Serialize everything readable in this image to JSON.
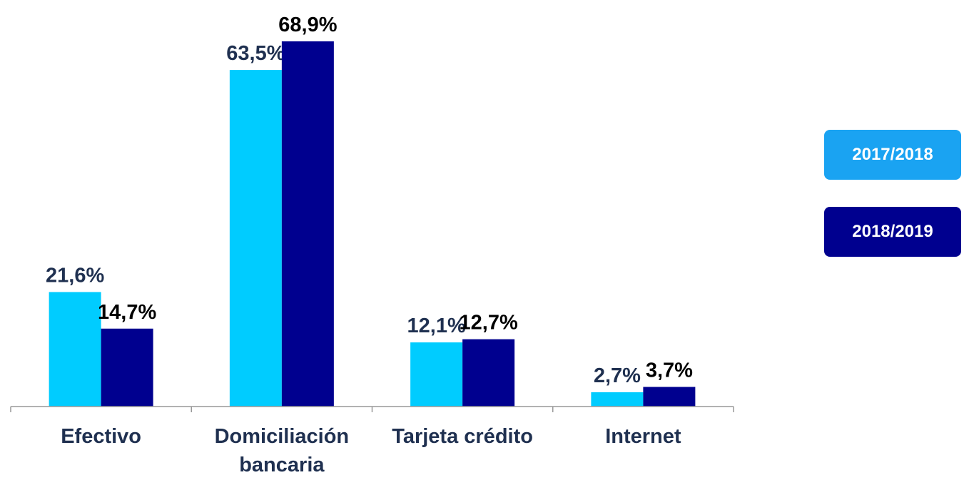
{
  "chart_data": {
    "type": "bar",
    "categories": [
      "Efectivo",
      "Domiciliación bancaria",
      "Tarjeta crédito",
      "Internet"
    ],
    "series": [
      {
        "name": "2017/2018",
        "color": "#00ccff",
        "values": [
          21.6,
          63.5,
          12.1,
          2.7
        ],
        "value_labels": [
          "21,6%",
          "63,5%",
          "12,1%",
          "2,7%"
        ]
      },
      {
        "name": "2018/2019",
        "color": "#00008f",
        "values": [
          14.7,
          68.9,
          12.7,
          3.7
        ],
        "value_labels": [
          "14,7%",
          "68,9%",
          "12,7%",
          "3,7%"
        ]
      }
    ],
    "ylim": [
      0,
      76.7
    ],
    "legend": "right"
  }
}
